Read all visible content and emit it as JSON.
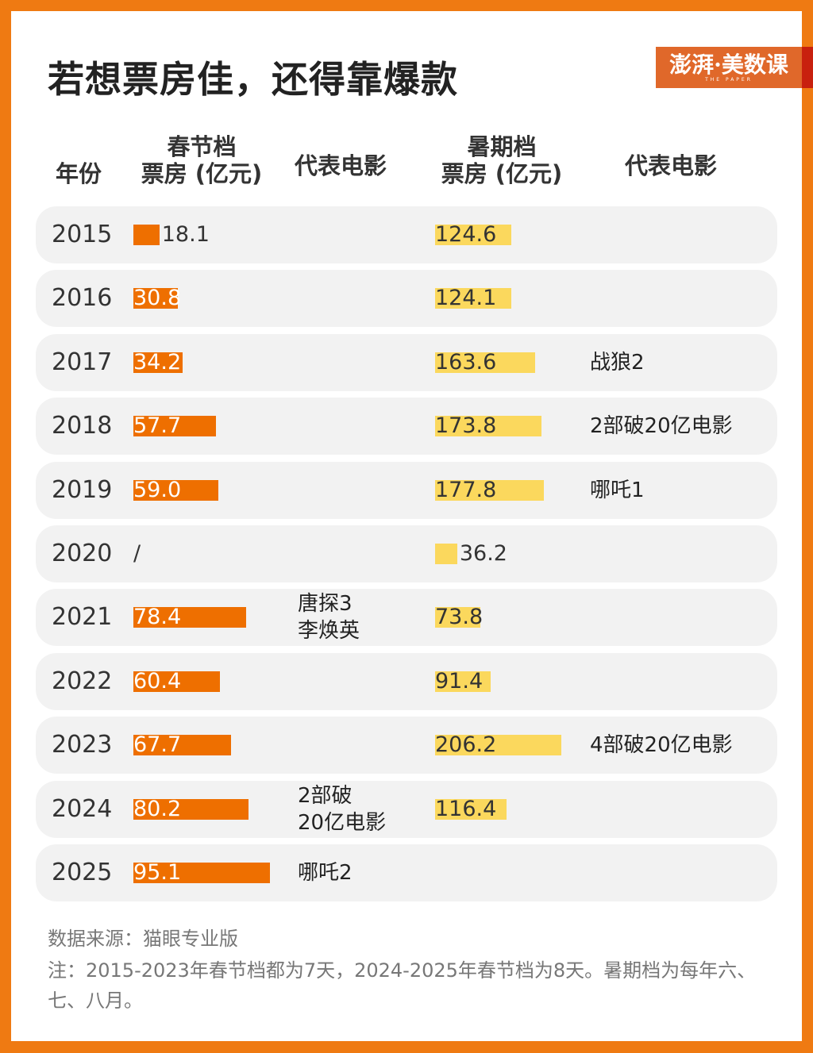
{
  "title": "若想票房佳，还得靠爆款",
  "logo": {
    "text": "澎湃·美数课",
    "sub": "THE PAPER"
  },
  "colors": {
    "frame": "#ef7a12",
    "spring_bar": "#ee6f00",
    "summer_bar": "#fbd85d",
    "row_bg": "#f2f2f2"
  },
  "headers": {
    "year": "年份",
    "spring": "春节档\n票房 (亿元)",
    "spring_film": "代表电影",
    "summer": "暑期档\n票房 (亿元)",
    "summer_film": "代表电影"
  },
  "chart_data": {
    "type": "table",
    "columns": [
      "年份",
      "春节档票房 (亿元)",
      "代表电影",
      "暑期档票房 (亿元)",
      "代表电影"
    ],
    "rows": [
      {
        "year": "2015",
        "spring": 18.1,
        "spring_label": "18.1",
        "spring_film": "",
        "summer": 124.6,
        "summer_label": "124.6",
        "summer_film": ""
      },
      {
        "year": "2016",
        "spring": 30.8,
        "spring_label": "30.8",
        "spring_film": "",
        "summer": 124.1,
        "summer_label": "124.1",
        "summer_film": ""
      },
      {
        "year": "2017",
        "spring": 34.2,
        "spring_label": "34.2",
        "spring_film": "",
        "summer": 163.6,
        "summer_label": "163.6",
        "summer_film": "战狼2"
      },
      {
        "year": "2018",
        "spring": 57.7,
        "spring_label": "57.7",
        "spring_film": "",
        "summer": 173.8,
        "summer_label": "173.8",
        "summer_film": "2部破20亿电影"
      },
      {
        "year": "2019",
        "spring": 59.0,
        "spring_label": "59.0",
        "spring_film": "",
        "summer": 177.8,
        "summer_label": "177.8",
        "summer_film": "哪吒1"
      },
      {
        "year": "2020",
        "spring": null,
        "spring_label": "/",
        "spring_film": "",
        "summer": 36.2,
        "summer_label": "36.2",
        "summer_film": ""
      },
      {
        "year": "2021",
        "spring": 78.4,
        "spring_label": "78.4",
        "spring_film": "唐探3\n李焕英",
        "summer": 73.8,
        "summer_label": "73.8",
        "summer_film": ""
      },
      {
        "year": "2022",
        "spring": 60.4,
        "spring_label": "60.4",
        "spring_film": "",
        "summer": 91.4,
        "summer_label": "91.4",
        "summer_film": ""
      },
      {
        "year": "2023",
        "spring": 67.7,
        "spring_label": "67.7",
        "spring_film": "",
        "summer": 206.2,
        "summer_label": "206.2",
        "summer_film": "4部破20亿电影"
      },
      {
        "year": "2024",
        "spring": 80.2,
        "spring_label": "80.2",
        "spring_film": "2部破\n20亿电影",
        "summer": 116.4,
        "summer_label": "116.4",
        "summer_film": ""
      },
      {
        "year": "2025",
        "spring": 95.1,
        "spring_label": "95.1",
        "spring_film": "哪吒2",
        "summer": null,
        "summer_label": "",
        "summer_film": ""
      }
    ]
  },
  "footer": {
    "source": "数据来源：猫眼专业版",
    "note": "注：2015-2023年春节档都为7天，2024-2025年春节档为8天。暑期档为每年六、七、八月。"
  }
}
